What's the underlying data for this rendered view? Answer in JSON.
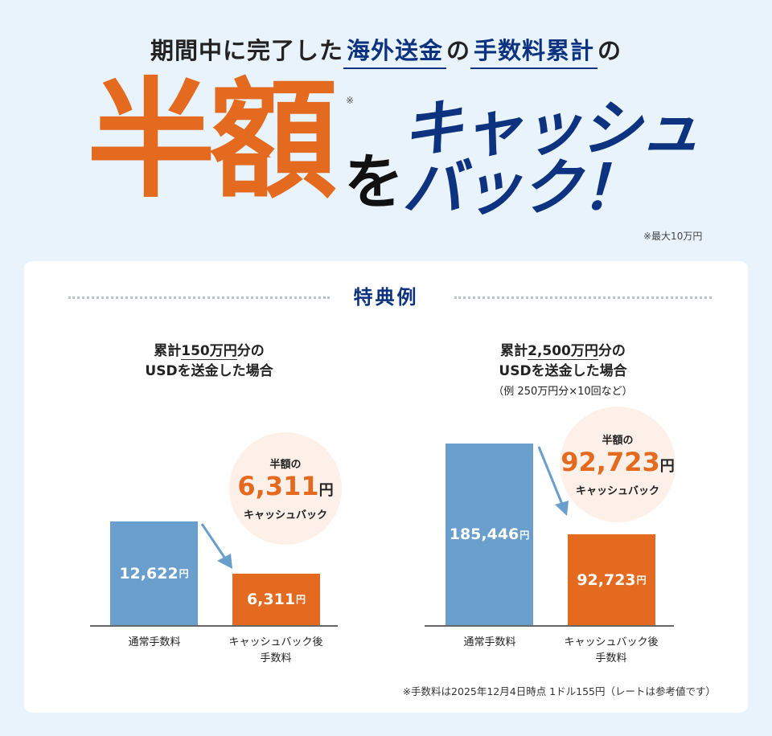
{
  "headline": {
    "pre": "期間中に完了した",
    "blue1": "海外送金",
    "mid": "の",
    "blue2": "手数料累計",
    "post": "の"
  },
  "hero": {
    "half": "半額",
    "note_mark": "※",
    "wo": "を",
    "cashback_line1": "キャッシュ",
    "cashback_line2": "バック！",
    "max_note": "※最大10万円"
  },
  "colors": {
    "background": "#e8f3fc",
    "navy": "#0d3380",
    "orange": "#e46a1f",
    "blue_bar": "#6a9fcd",
    "circle": "#fdf0e8"
  },
  "card": {
    "title": "特典例",
    "footnote": "※手数料は2025年12月4日時点 1ドル155円（レートは参考値です）"
  },
  "chart_data": [
    {
      "type": "bar",
      "heading": {
        "pre": "累計",
        "amount": "150万円",
        "post": "分の",
        "line2": "USDを送金した場合"
      },
      "categories": [
        "通常手数料",
        "キャッシュバック後\n手数料"
      ],
      "category_labels": [
        [
          "通常手数料"
        ],
        [
          "キャッシュバック後",
          "手数料"
        ]
      ],
      "values": [
        12622,
        6311
      ],
      "value_labels": [
        "12,622",
        "6,311"
      ],
      "unit": "円",
      "callout": {
        "top": "半額の",
        "value": "6,311",
        "unit": "円",
        "bottom": "キャッシュバック"
      }
    },
    {
      "type": "bar",
      "heading": {
        "pre": "累計",
        "amount": "2,500万円",
        "post": "分の",
        "line2": "USDを送金した場合",
        "sub": "（例 250万円分×10回など）"
      },
      "categories": [
        "通常手数料",
        "キャッシュバック後\n手数料"
      ],
      "category_labels": [
        [
          "通常手数料"
        ],
        [
          "キャッシュバック後",
          "手数料"
        ]
      ],
      "values": [
        185446,
        92723
      ],
      "value_labels": [
        "185,446",
        "92,723"
      ],
      "unit": "円",
      "callout": {
        "top": "半額の",
        "value": "92,723",
        "unit": "円",
        "bottom": "キャッシュバック"
      }
    }
  ]
}
